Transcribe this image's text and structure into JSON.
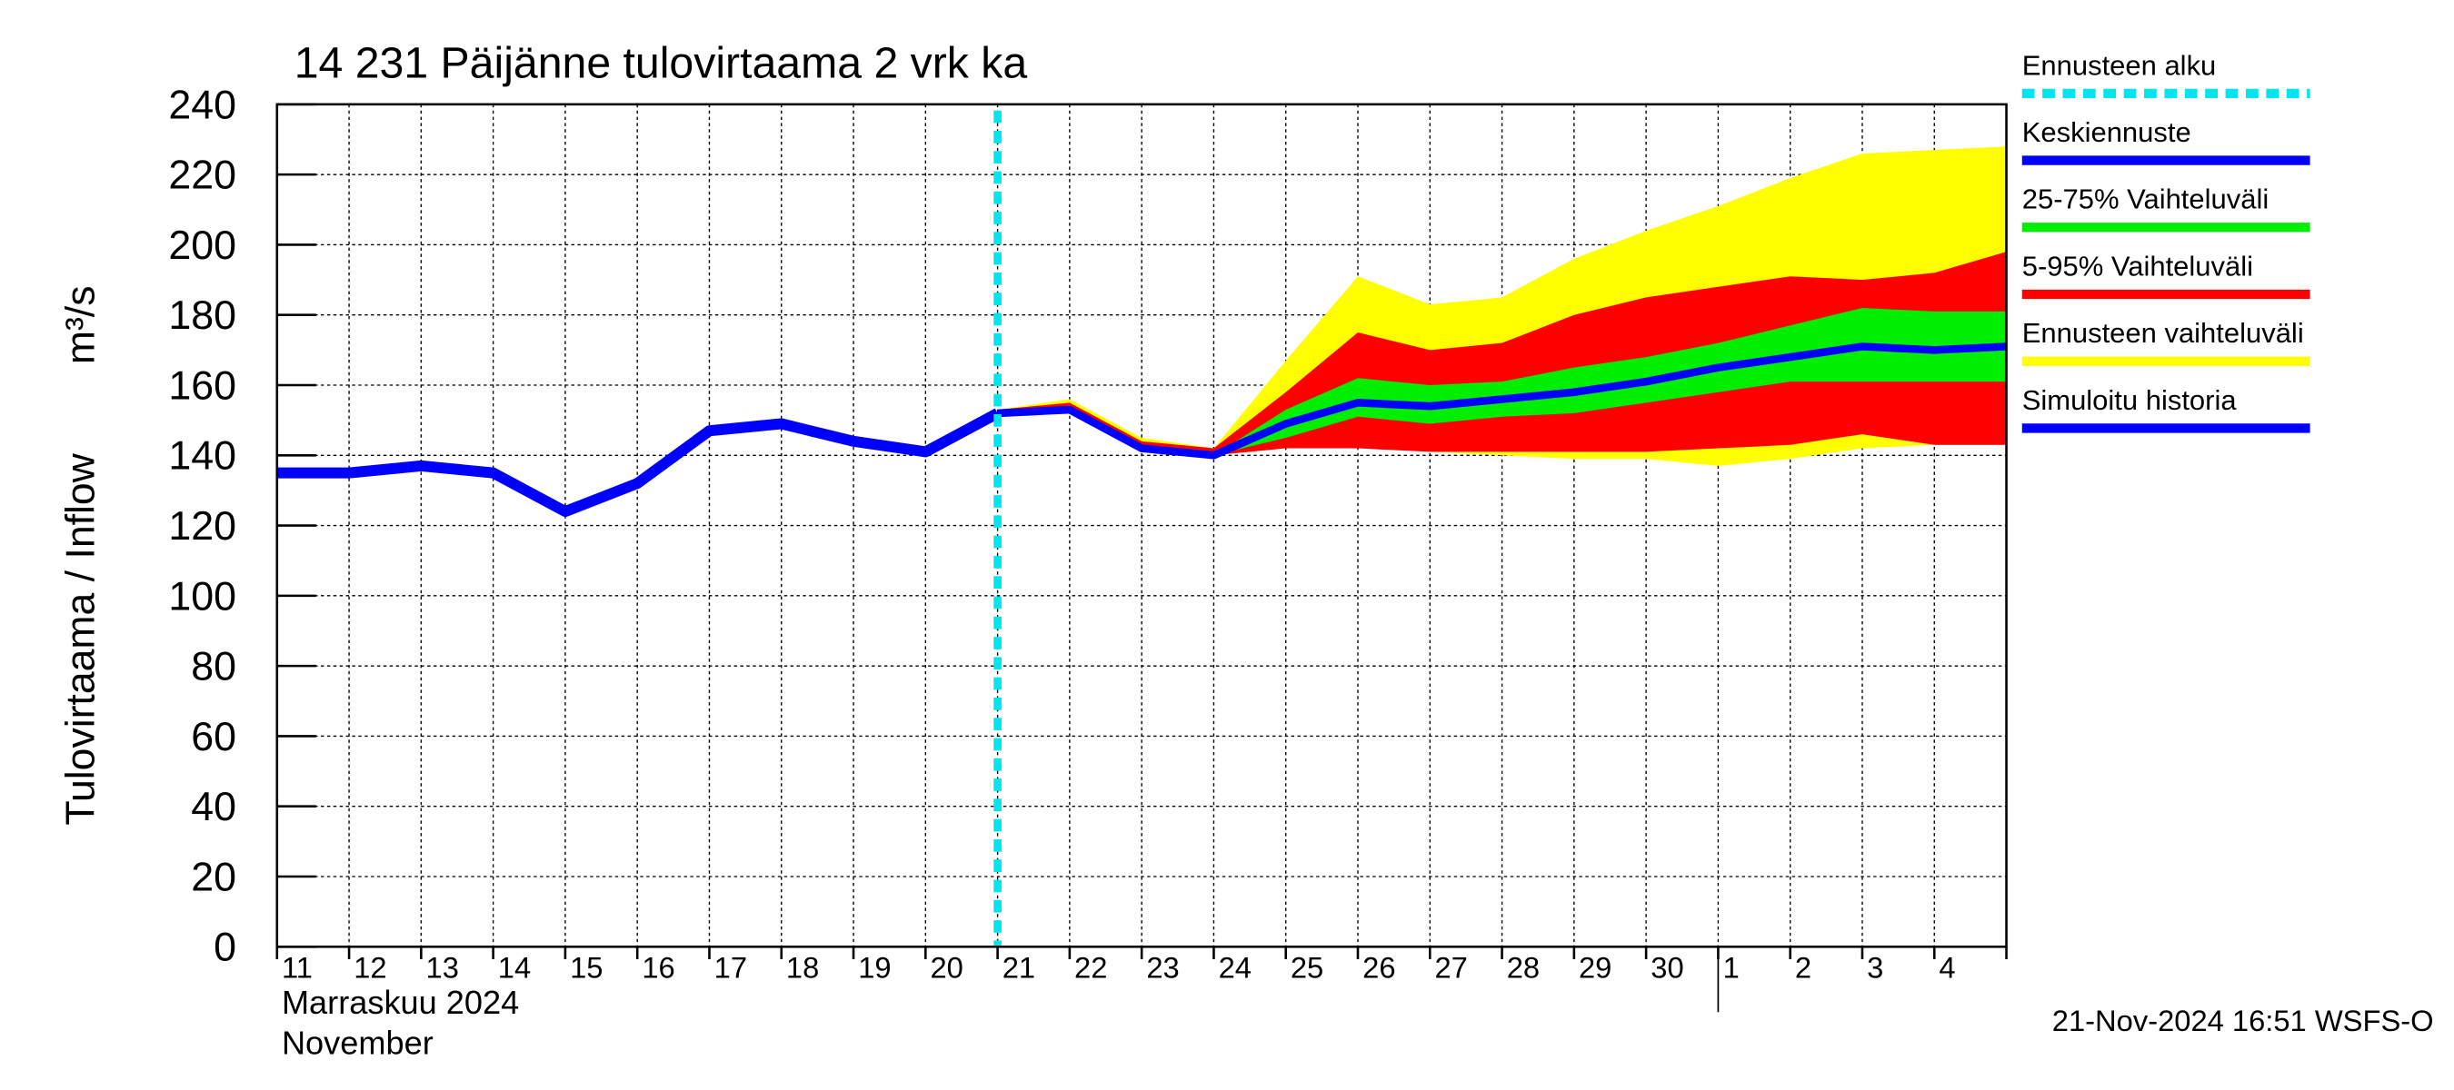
{
  "chart_data": {
    "type": "band_forecast",
    "title": "14 231 Päijänne tulovirtaama 2 vrk ka",
    "y_label": "Tulovirtaama / Inflow",
    "y_unit": "m³/s",
    "x_label": [
      "Marraskuu 2024",
      "November"
    ],
    "footer": "21-Nov-2024 16:51 WSFS-O",
    "categories": [
      "11",
      "12",
      "13",
      "14",
      "15",
      "16",
      "17",
      "18",
      "19",
      "20",
      "21",
      "22",
      "23",
      "24",
      "25",
      "26",
      "27",
      "28",
      "29",
      "30",
      "1",
      "2",
      "3",
      "4",
      null
    ],
    "month_break": "1",
    "ylim": [
      0,
      240
    ],
    "yticks": [
      0,
      20,
      40,
      60,
      80,
      100,
      120,
      140,
      160,
      180,
      200,
      220,
      240
    ],
    "grid": true,
    "marker": {
      "name": "Ennusteen alku",
      "color": "#00e5ee",
      "category": "21"
    },
    "series": [
      {
        "name": "Simuloitu historia",
        "color": "#0000ff",
        "values": [
          135,
          135,
          137,
          135,
          124,
          132,
          147,
          149,
          144,
          141,
          152,
          null,
          null,
          null,
          null,
          null,
          null,
          null,
          null,
          null,
          null,
          null,
          null,
          null,
          null
        ]
      },
      {
        "name": "Keskiennuste",
        "color": "#0000ff",
        "values": [
          null,
          null,
          null,
          null,
          null,
          null,
          null,
          null,
          null,
          null,
          152,
          153,
          142,
          140,
          149,
          155,
          154,
          156,
          158,
          161,
          165,
          168,
          171,
          170,
          171
        ]
      }
    ],
    "bands": [
      {
        "name": "25-75% Vaihteluväli",
        "color": "#00ee00",
        "upper": [
          null,
          null,
          null,
          null,
          null,
          null,
          null,
          null,
          null,
          null,
          152,
          153,
          143,
          140,
          153,
          162,
          160,
          161,
          165,
          168,
          172,
          177,
          182,
          181,
          181
        ],
        "lower": [
          null,
          null,
          null,
          null,
          null,
          null,
          null,
          null,
          null,
          null,
          152,
          152,
          142,
          140,
          145,
          151,
          149,
          151,
          152,
          155,
          158,
          161,
          161,
          161,
          161
        ]
      },
      {
        "name": "5-95% Vaihteluväli",
        "color": "#ff0000",
        "upper": [
          null,
          null,
          null,
          null,
          null,
          null,
          null,
          null,
          null,
          null,
          153,
          155,
          144,
          142,
          158,
          175,
          170,
          172,
          180,
          185,
          188,
          191,
          190,
          192,
          198
        ],
        "lower": [
          null,
          null,
          null,
          null,
          null,
          null,
          null,
          null,
          null,
          null,
          152,
          152,
          142,
          140,
          142,
          142,
          141,
          141,
          141,
          141,
          142,
          143,
          146,
          143,
          143
        ]
      },
      {
        "name": "Ennusteen vaihteluväli",
        "color": "#ffff00",
        "upper": [
          null,
          null,
          null,
          null,
          null,
          null,
          null,
          null,
          null,
          null,
          153,
          156,
          145,
          142,
          167,
          191,
          183,
          185,
          196,
          204,
          211,
          219,
          226,
          227,
          228
        ],
        "lower": [
          null,
          null,
          null,
          null,
          null,
          null,
          null,
          null,
          null,
          null,
          152,
          152,
          142,
          140,
          142,
          145,
          141,
          140,
          139,
          139,
          137,
          139,
          142,
          143,
          143
        ]
      }
    ]
  }
}
